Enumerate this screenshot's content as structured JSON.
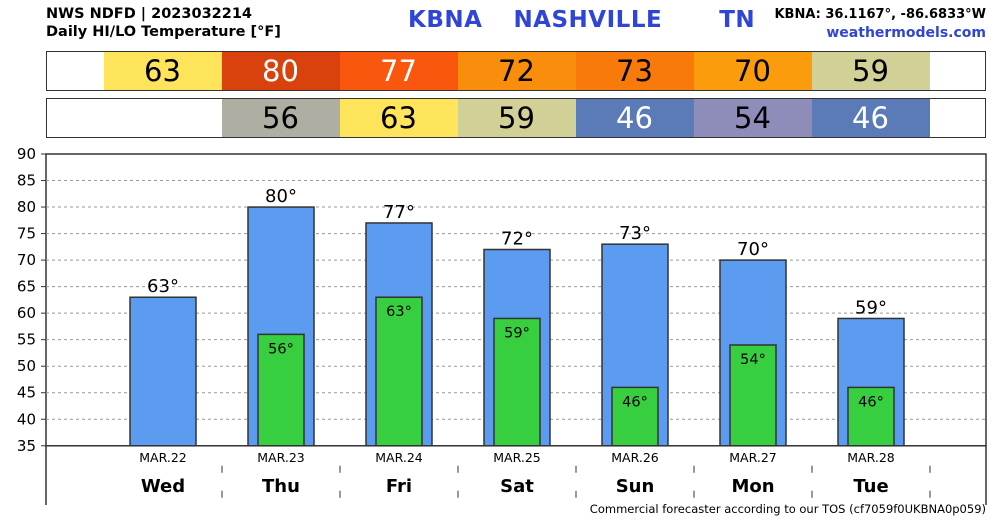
{
  "header": {
    "line1": "NWS NDFD | 2023032214",
    "line2": "Daily HI/LO Temperature [°F]",
    "station": "KBNA",
    "city": "NASHVILLE",
    "state": "TN",
    "coords": "KBNA: 36.1167°, -86.6833°W",
    "site": "weathermodels.com"
  },
  "footer": "Commercial forecaster according to our TOS (cf7059f0UKBNA0p059)",
  "colors": {
    "hi_bar": "#5b9cf0",
    "lo_bar": "#37cf3f",
    "hi_strip": [
      "#fde45b",
      "#d9420c",
      "#f9570d",
      "#f98e0d",
      "#f77a0b",
      "#fb9c0c",
      "#d1d096"
    ],
    "lo_strip": [
      null,
      "#aeaea2",
      "#fde45b",
      "#d1d096",
      "#5b7ab8",
      "#8e8cb8",
      "#5b7ab8"
    ]
  },
  "chart_data": {
    "type": "bar",
    "days": [
      "Wed",
      "Thu",
      "Fri",
      "Sat",
      "Sun",
      "Mon",
      "Tue"
    ],
    "categories": [
      "MAR.22",
      "MAR.23",
      "MAR.24",
      "MAR.25",
      "MAR.26",
      "MAR.27",
      "MAR.28"
    ],
    "series": [
      {
        "values": [
          63,
          80,
          77,
          72,
          73,
          70,
          59
        ]
      },
      {
        "values": [
          null,
          56,
          63,
          59,
          46,
          54,
          46
        ]
      }
    ],
    "hi_labels": [
      "63°",
      "80°",
      "77°",
      "72°",
      "73°",
      "70°",
      "59°"
    ],
    "lo_labels": [
      "",
      "56°",
      "63°",
      "59°",
      "46°",
      "54°",
      "46°"
    ],
    "hi_strip": [
      "63",
      "80",
      "77",
      "72",
      "73",
      "70",
      "59"
    ],
    "lo_strip": [
      "",
      "56",
      "63",
      "59",
      "46",
      "54",
      "46"
    ],
    "yticks": [
      "90",
      "85",
      "80",
      "75",
      "70",
      "65",
      "60",
      "55",
      "50",
      "45",
      "40",
      "35"
    ],
    "ylim": [
      35,
      90
    ],
    "grid": true
  }
}
